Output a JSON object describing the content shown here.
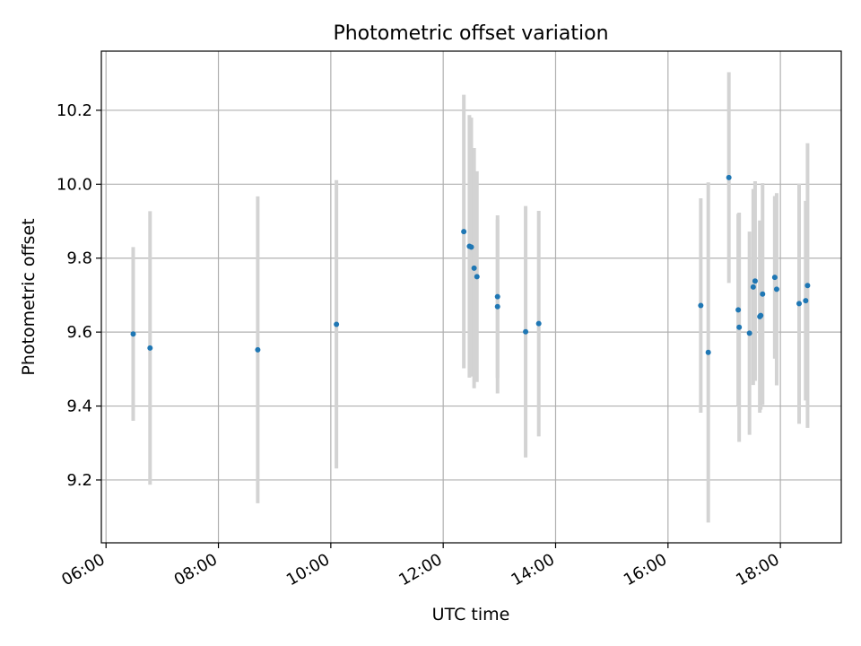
{
  "chart_data": {
    "type": "scatter",
    "title": "Photometric offset variation",
    "xlabel": "UTC time",
    "ylabel": "Photometric offset",
    "x_tick_labels": [
      "06:00",
      "08:00",
      "10:00",
      "12:00",
      "14:00",
      "16:00",
      "18:00"
    ],
    "x_ticks": [
      "06:00",
      "08:00",
      "10:00",
      "12:00",
      "14:00",
      "16:00",
      "18:00"
    ],
    "y_tick_labels": [
      "9.2",
      "9.4",
      "9.6",
      "9.8",
      "10.0",
      "10.2"
    ],
    "y_ticks": [
      9.2,
      9.4,
      9.6,
      9.8,
      10.0,
      10.2
    ],
    "xlim": [
      "05:55",
      "19:05"
    ],
    "ylim": [
      9.03,
      10.36
    ],
    "grid": true,
    "colors": {
      "marker": "#1f77b4",
      "errorbar": "#d3d3d3",
      "grid": "#b0b0b0"
    },
    "points": [
      {
        "x": "06:29",
        "y": 9.595,
        "err": 0.235
      },
      {
        "x": "06:47",
        "y": 9.557,
        "err": 0.37
      },
      {
        "x": "08:42",
        "y": 9.552,
        "err": 0.415
      },
      {
        "x": "10:06",
        "y": 9.621,
        "err": 0.39
      },
      {
        "x": "12:22",
        "y": 9.872,
        "err": 0.37
      },
      {
        "x": "12:28",
        "y": 9.832,
        "err": 0.355
      },
      {
        "x": "12:30",
        "y": 9.83,
        "err": 0.35
      },
      {
        "x": "12:33",
        "y": 9.773,
        "err": 0.325
      },
      {
        "x": "12:36",
        "y": 9.75,
        "err": 0.285
      },
      {
        "x": "12:58",
        "y": 9.696,
        "err": 0.22
      },
      {
        "x": "12:58",
        "y": 9.669,
        "err": 0.235
      },
      {
        "x": "13:28",
        "y": 9.601,
        "err": 0.34
      },
      {
        "x": "13:42",
        "y": 9.623,
        "err": 0.305
      },
      {
        "x": "16:35",
        "y": 9.672,
        "err": 0.29
      },
      {
        "x": "16:43",
        "y": 9.545,
        "err": 0.46
      },
      {
        "x": "17:05",
        "y": 10.018,
        "err": 0.285
      },
      {
        "x": "17:15",
        "y": 9.66,
        "err": 0.26
      },
      {
        "x": "17:16",
        "y": 9.613,
        "err": 0.31
      },
      {
        "x": "17:27",
        "y": 9.597,
        "err": 0.275
      },
      {
        "x": "17:31",
        "y": 9.722,
        "err": 0.265
      },
      {
        "x": "17:33",
        "y": 9.738,
        "err": 0.27
      },
      {
        "x": "17:38",
        "y": 9.642,
        "err": 0.26
      },
      {
        "x": "17:39",
        "y": 9.645,
        "err": 0.255
      },
      {
        "x": "17:41",
        "y": 9.703,
        "err": 0.3
      },
      {
        "x": "17:54",
        "y": 9.748,
        "err": 0.22
      },
      {
        "x": "17:56",
        "y": 9.716,
        "err": 0.26
      },
      {
        "x": "18:20",
        "y": 9.677,
        "err": 0.325
      },
      {
        "x": "18:27",
        "y": 9.685,
        "err": 0.27
      },
      {
        "x": "18:29",
        "y": 9.726,
        "err": 0.385
      }
    ]
  }
}
